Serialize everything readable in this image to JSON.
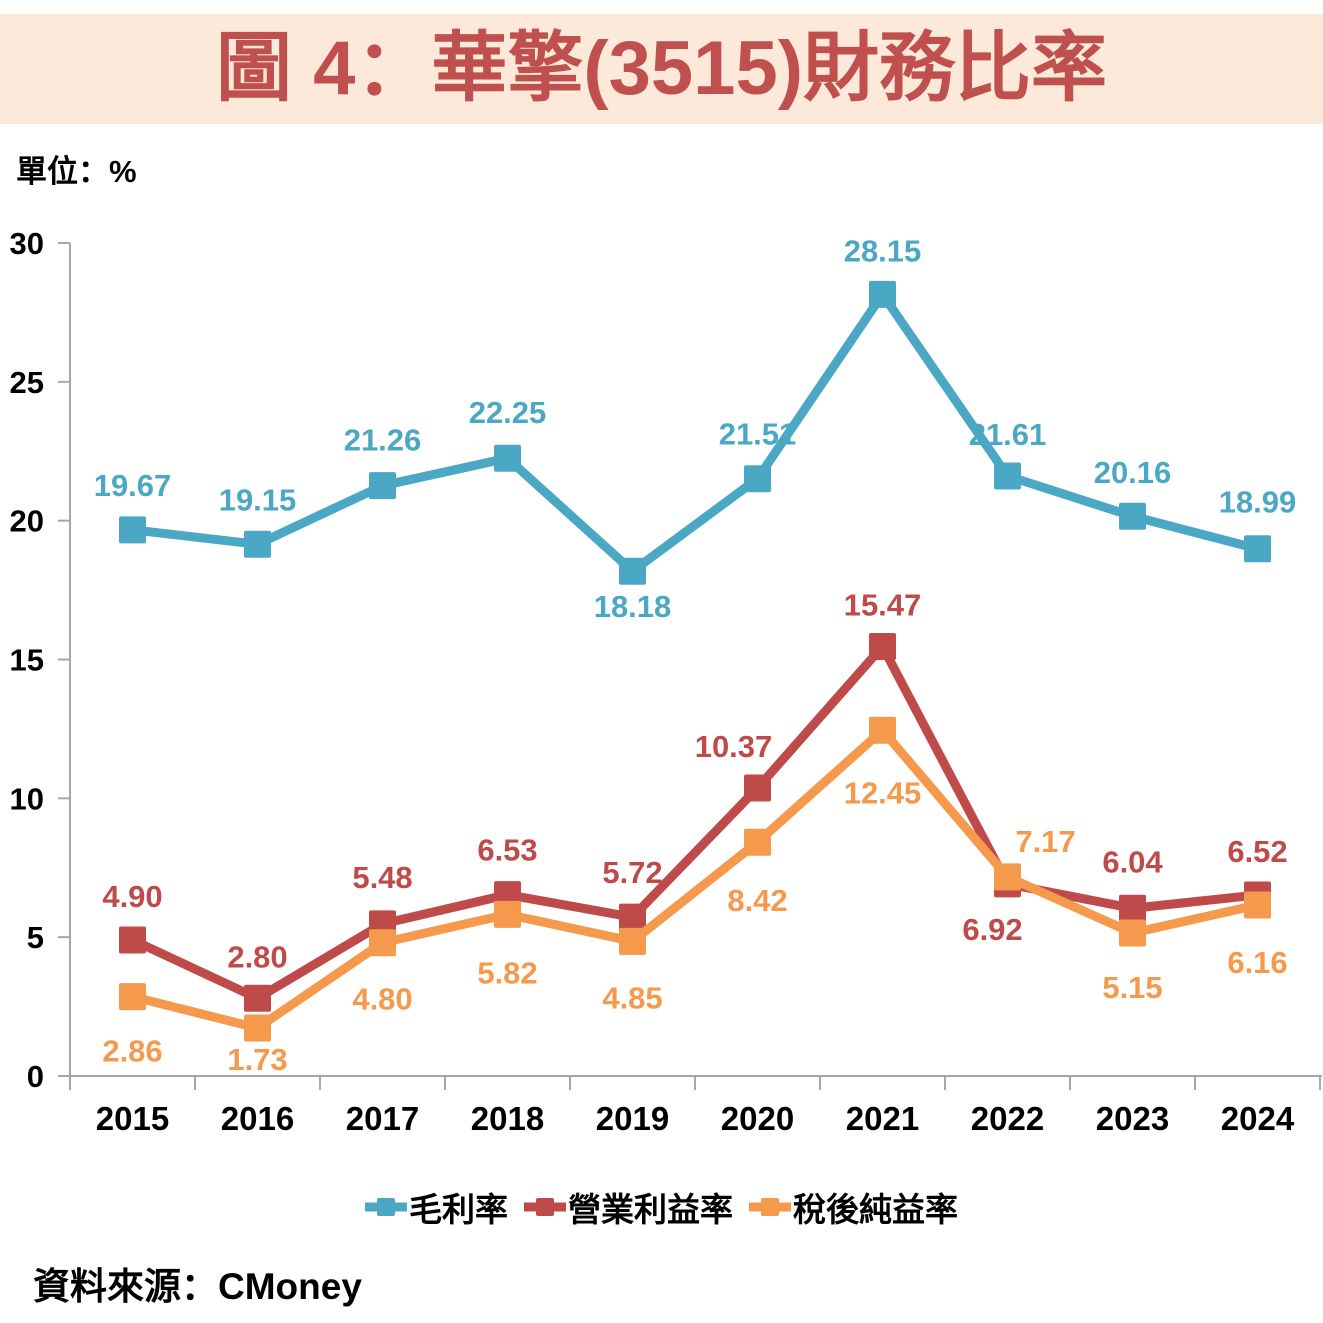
{
  "page": {
    "title": "圖 4：華擎(3515)財務比率",
    "unit_label": "單位：%",
    "source": "資料來源：CMoney"
  },
  "colors": {
    "background": "#FFFFFF",
    "banner_bg": "#FCE9DA",
    "title_text": "#C0504D",
    "axis_line": "#A6A6A6",
    "axis_text": "#000000"
  },
  "chart_data": {
    "type": "line",
    "x": [
      "2015",
      "2016",
      "2017",
      "2018",
      "2019",
      "2020",
      "2021",
      "2022",
      "2023",
      "2024"
    ],
    "ylim": [
      0,
      30
    ],
    "yticks": [
      0,
      5,
      10,
      15,
      20,
      25,
      30
    ],
    "grid": false,
    "legend_position": "bottom",
    "series": [
      {
        "name": "毛利率",
        "key": "gross-margin",
        "color": "#4BA8C5",
        "values": [
          19.67,
          19.15,
          21.26,
          22.25,
          18.18,
          21.51,
          28.15,
          21.61,
          20.16,
          18.99
        ],
        "labels": [
          "19.67",
          "19.15",
          "21.26",
          "22.25",
          "18.18",
          "21.51",
          "28.15",
          "21.61",
          "20.16",
          "18.99"
        ],
        "label_dx": [
          0,
          0,
          0,
          0,
          0,
          0,
          0,
          0,
          0,
          0
        ],
        "label_dy": [
          -34,
          -34,
          -35,
          -35,
          46,
          -34,
          -33,
          -31,
          -33,
          -36
        ]
      },
      {
        "name": "營業利益率",
        "key": "operating-margin",
        "color": "#BE4B4A",
        "values": [
          4.9,
          2.8,
          5.48,
          6.53,
          5.72,
          10.37,
          15.47,
          6.92,
          6.04,
          6.52
        ],
        "labels": [
          "4.90",
          "2.80",
          "5.48",
          "6.53",
          "5.72",
          "10.37",
          "15.47",
          "6.92",
          "6.04",
          "6.52"
        ],
        "label_dx": [
          0,
          0,
          0,
          0,
          0,
          -24,
          0,
          -15,
          0,
          0
        ],
        "label_dy": [
          -33,
          -31,
          -36,
          -34,
          -34,
          -31,
          -31,
          56,
          -36,
          -33
        ]
      },
      {
        "name": "稅後純益率",
        "key": "net-margin",
        "color": "#F5994C",
        "values": [
          2.86,
          1.73,
          4.8,
          5.82,
          4.85,
          8.42,
          12.45,
          7.17,
          5.15,
          6.16
        ],
        "labels": [
          "2.86",
          "1.73",
          "4.80",
          "5.82",
          "4.85",
          "8.42",
          "12.45",
          "7.17",
          "5.15",
          "6.16"
        ],
        "label_dx": [
          0,
          0,
          0,
          0,
          0,
          0,
          0,
          38,
          0,
          0
        ],
        "label_dy": [
          65,
          42,
          67,
          69,
          67,
          69,
          73,
          -25,
          65,
          68
        ]
      }
    ]
  }
}
